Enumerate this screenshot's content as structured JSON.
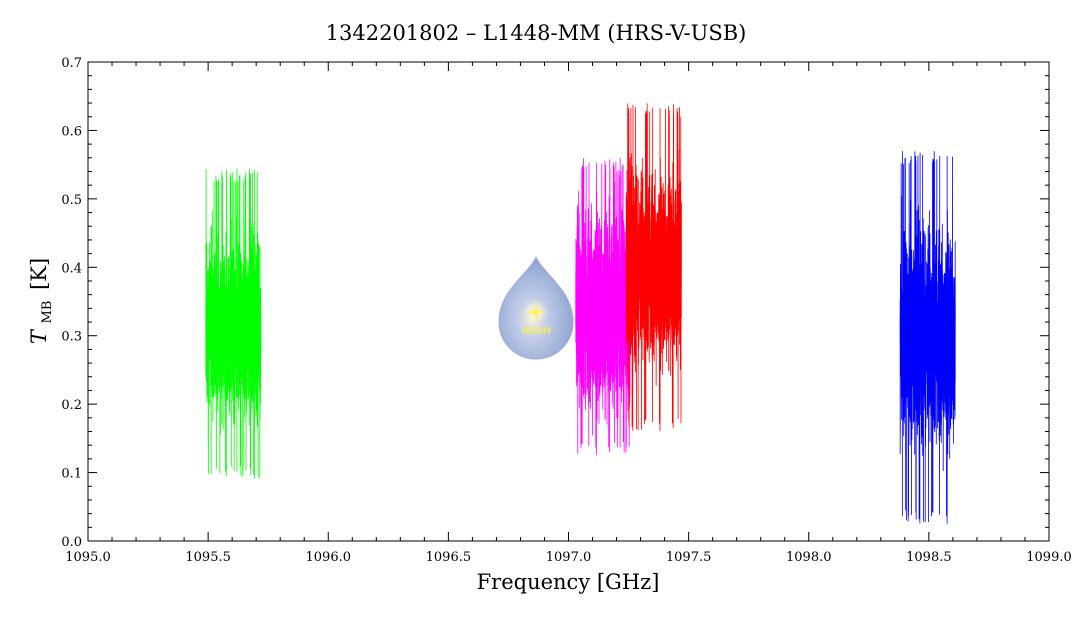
{
  "chart_data": {
    "type": "line",
    "title": "1342201802 – L1448-MM (HRS-V-USB)",
    "xlabel": "Frequency [GHz]",
    "ylabel": {
      "main": "T",
      "subscript": "MB",
      "unit": "[K]"
    },
    "xlim": [
      1095.0,
      1099.0
    ],
    "ylim": [
      0.0,
      0.7
    ],
    "x_ticks": [
      "1095.0",
      "1096.0",
      "1096.5",
      "1097.0",
      "1097.5",
      "1098.0",
      "1098.5",
      "1099.0"
    ],
    "x_tick_values": [
      1095.0,
      1096.0,
      1096.5,
      1097.0,
      1097.5,
      1098.0,
      1098.5,
      1099.0
    ],
    "x_ticks_all": [
      "1095.0",
      "1095.5",
      "1096.0",
      "1096.5",
      "1097.0",
      "1097.5",
      "1098.0",
      "1098.5",
      "1099.0"
    ],
    "x_tick_values_all": [
      1095.0,
      1095.5,
      1096.0,
      1096.5,
      1097.0,
      1097.5,
      1098.0,
      1098.5,
      1099.0
    ],
    "y_ticks": [
      "0.0",
      "0.1",
      "0.2",
      "0.3",
      "0.4",
      "0.5",
      "0.6",
      "0.7"
    ],
    "y_tick_values": [
      0.0,
      0.1,
      0.2,
      0.3,
      0.4,
      0.5,
      0.6,
      0.7
    ],
    "grid": false,
    "series": [
      {
        "color": "#00ff00",
        "x_range": [
          1095.49,
          1095.72
        ],
        "mean": 0.31,
        "spread": 0.065,
        "min": 0.09,
        "max": 0.545
      },
      {
        "color": "#ff00ff",
        "x_range": [
          1097.03,
          1097.26
        ],
        "mean": 0.34,
        "spread": 0.075,
        "min": 0.125,
        "max": 0.56
      },
      {
        "color": "#ff0000",
        "x_range": [
          1097.24,
          1097.47
        ],
        "mean": 0.4,
        "spread": 0.07,
        "min": 0.16,
        "max": 0.64
      },
      {
        "color": "#0000ff",
        "x_range": [
          1098.38,
          1098.61
        ],
        "mean": 0.3,
        "spread": 0.08,
        "min": 0.025,
        "max": 0.57
      }
    ],
    "watermark": {
      "text": "WISH"
    }
  }
}
